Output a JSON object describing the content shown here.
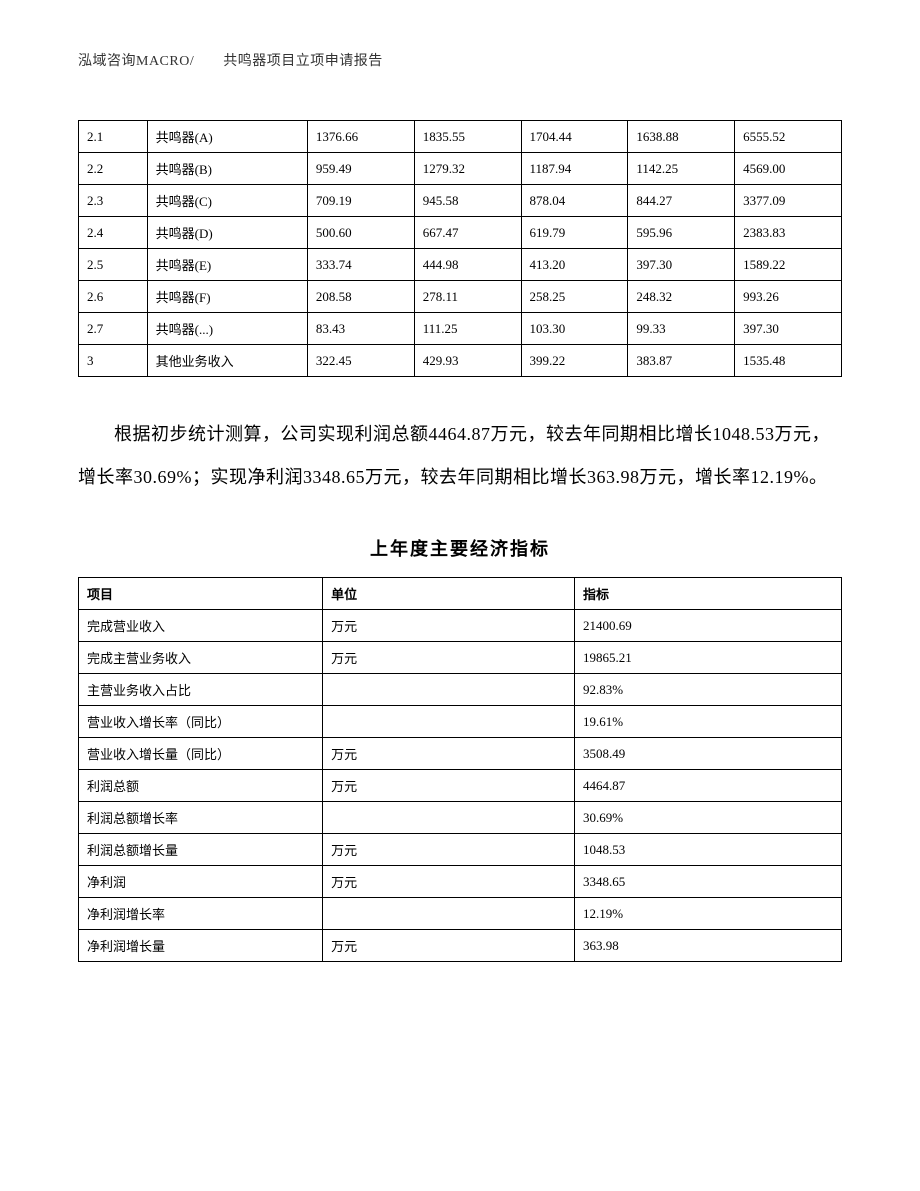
{
  "header": "泓域咨询MACRO/　　共鸣器项目立项申请报告",
  "table1": {
    "col_widths": [
      "9%",
      "21%",
      "14%",
      "14%",
      "14%",
      "14%",
      "14%"
    ],
    "rows": [
      [
        "2.1",
        "共鸣器(A)",
        "1376.66",
        "1835.55",
        "1704.44",
        "1638.88",
        "6555.52"
      ],
      [
        "2.2",
        "共鸣器(B)",
        "959.49",
        "1279.32",
        "1187.94",
        "1142.25",
        "4569.00"
      ],
      [
        "2.3",
        "共鸣器(C)",
        "709.19",
        "945.58",
        "878.04",
        "844.27",
        "3377.09"
      ],
      [
        "2.4",
        "共鸣器(D)",
        "500.60",
        "667.47",
        "619.79",
        "595.96",
        "2383.83"
      ],
      [
        "2.5",
        "共鸣器(E)",
        "333.74",
        "444.98",
        "413.20",
        "397.30",
        "1589.22"
      ],
      [
        "2.6",
        "共鸣器(F)",
        "208.58",
        "278.11",
        "258.25",
        "248.32",
        "993.26"
      ],
      [
        "2.7",
        "共鸣器(...)",
        "83.43",
        "111.25",
        "103.30",
        "99.33",
        "397.30"
      ],
      [
        "3",
        "其他业务收入",
        "322.45",
        "429.93",
        "399.22",
        "383.87",
        "1535.48"
      ]
    ]
  },
  "paragraph": "根据初步统计测算，公司实现利润总额4464.87万元，较去年同期相比增长1048.53万元，增长率30.69%；实现净利润3348.65万元，较去年同期相比增长363.98万元，增长率12.19%。",
  "table2": {
    "title": "上年度主要经济指标",
    "col_widths": [
      "32%",
      "33%",
      "35%"
    ],
    "headers": [
      "项目",
      "单位",
      "指标"
    ],
    "rows": [
      [
        "完成营业收入",
        "万元",
        "21400.69"
      ],
      [
        "完成主营业务收入",
        "万元",
        "19865.21"
      ],
      [
        "主营业务收入占比",
        "",
        "92.83%"
      ],
      [
        "营业收入增长率（同比）",
        "",
        "19.61%"
      ],
      [
        "营业收入增长量（同比）",
        "万元",
        "3508.49"
      ],
      [
        "利润总额",
        "万元",
        "4464.87"
      ],
      [
        "利润总额增长率",
        "",
        "30.69%"
      ],
      [
        "利润总额增长量",
        "万元",
        "1048.53"
      ],
      [
        "净利润",
        "万元",
        "3348.65"
      ],
      [
        "净利润增长率",
        "",
        "12.19%"
      ],
      [
        "净利润增长量",
        "万元",
        "363.98"
      ]
    ]
  }
}
